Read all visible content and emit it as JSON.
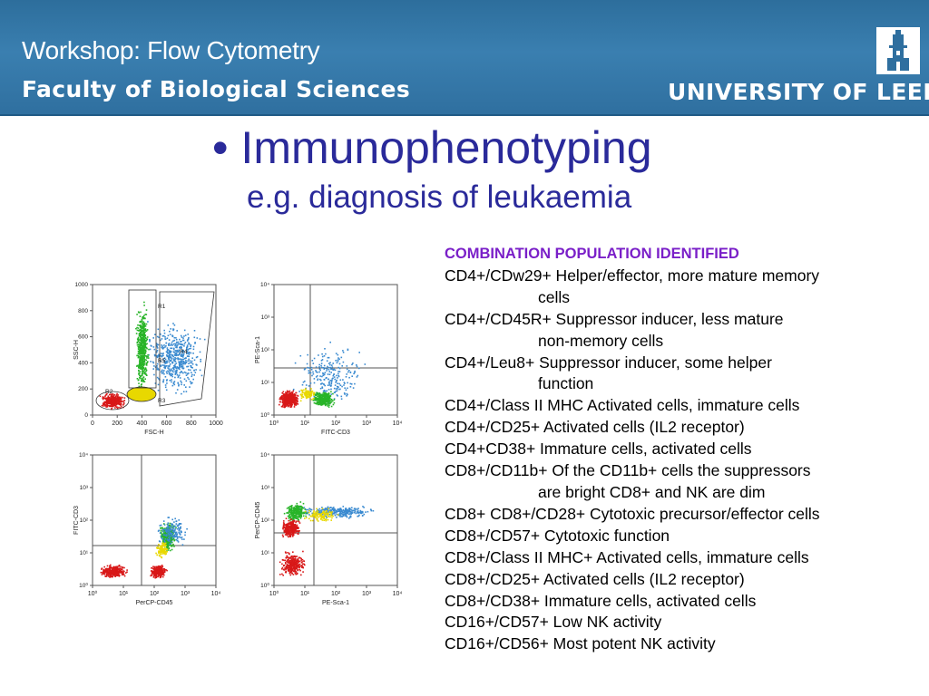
{
  "header": {
    "workshop": "Workshop: Flow Cytometry",
    "faculty": "Faculty of Biological Sciences",
    "university": "UNIVERSITY OF LEEDS",
    "logo_icon": "tower-icon"
  },
  "title": "Immunophenotyping",
  "bullet": "•",
  "subtitle": "e.g. diagnosis of leukaemia",
  "plots": {
    "p1": {
      "ylabel": "SSC-H",
      "xlabel": "FSC-H",
      "yticks": [
        "1000",
        "800",
        "600",
        "400",
        "200",
        "0"
      ],
      "xticks": [
        "0",
        "200",
        "400",
        "600",
        "800",
        "1000"
      ],
      "regions": [
        "R1",
        "R2",
        "R3",
        "R4",
        "R5"
      ]
    },
    "p2": {
      "ylabel": "PE-Sca-1",
      "xlabel": "FITC-CD3"
    },
    "p3": {
      "ylabel": "FITC-CD3",
      "xlabel": "PerCP-CD45"
    },
    "p4": {
      "ylabel": "PerCP-CD45",
      "xlabel": "PE-Sca-1"
    },
    "log_ticks": [
      "10⁰",
      "10¹",
      "10²",
      "10³",
      "10⁴"
    ]
  },
  "table": {
    "header": "COMBINATION POPULATION IDENTIFIED",
    "rows": [
      {
        "line": "CD4+/CDw29+ Helper/effector, more mature memory",
        "cont": "cells"
      },
      {
        "line": "CD4+/CD45R+ Suppressor inducer, less mature",
        "cont": "non-memory cells"
      },
      {
        "line": "CD4+/Leu8+ Suppressor inducer, some helper",
        "cont": "function"
      },
      {
        "line": "CD4+/Class II MHC Activated cells, immature cells",
        "cont": ""
      },
      {
        "line": "CD4+/CD25+ Activated cells (IL2 receptor)",
        "cont": ""
      },
      {
        "line": "CD4+CD38+ Immature cells, activated cells",
        "cont": ""
      },
      {
        "line": "CD8+/CD11b+ Of the CD11b+ cells the suppressors",
        "cont": "are bright CD8+ and NK are dim"
      },
      {
        "line": "CD8+ CD8+/CD28+ Cytotoxic precursor/effector cells",
        "cont": ""
      },
      {
        "line": "CD8+/CD57+ Cytotoxic function",
        "cont": ""
      },
      {
        "line": "CD8+/Class II MHC+ Activated cells, immature cells",
        "cont": ""
      },
      {
        "line": "CD8+/CD25+ Activated cells (IL2 receptor)",
        "cont": ""
      },
      {
        "line": "CD8+/CD38+ Immature cells, activated cells",
        "cont": ""
      },
      {
        "line": "CD16+/CD57+ Low NK activity",
        "cont": ""
      },
      {
        "line": "CD16+/CD56+ Most potent NK activity",
        "cont": ""
      }
    ]
  },
  "colors": {
    "banner": "#2f6f9f",
    "title": "#2a2a9a",
    "table_header": "#7a1fc8",
    "dots_red": "#d81818",
    "dots_green": "#28b428",
    "dots_blue": "#3a8ad0",
    "dots_yellow": "#e8d800"
  }
}
